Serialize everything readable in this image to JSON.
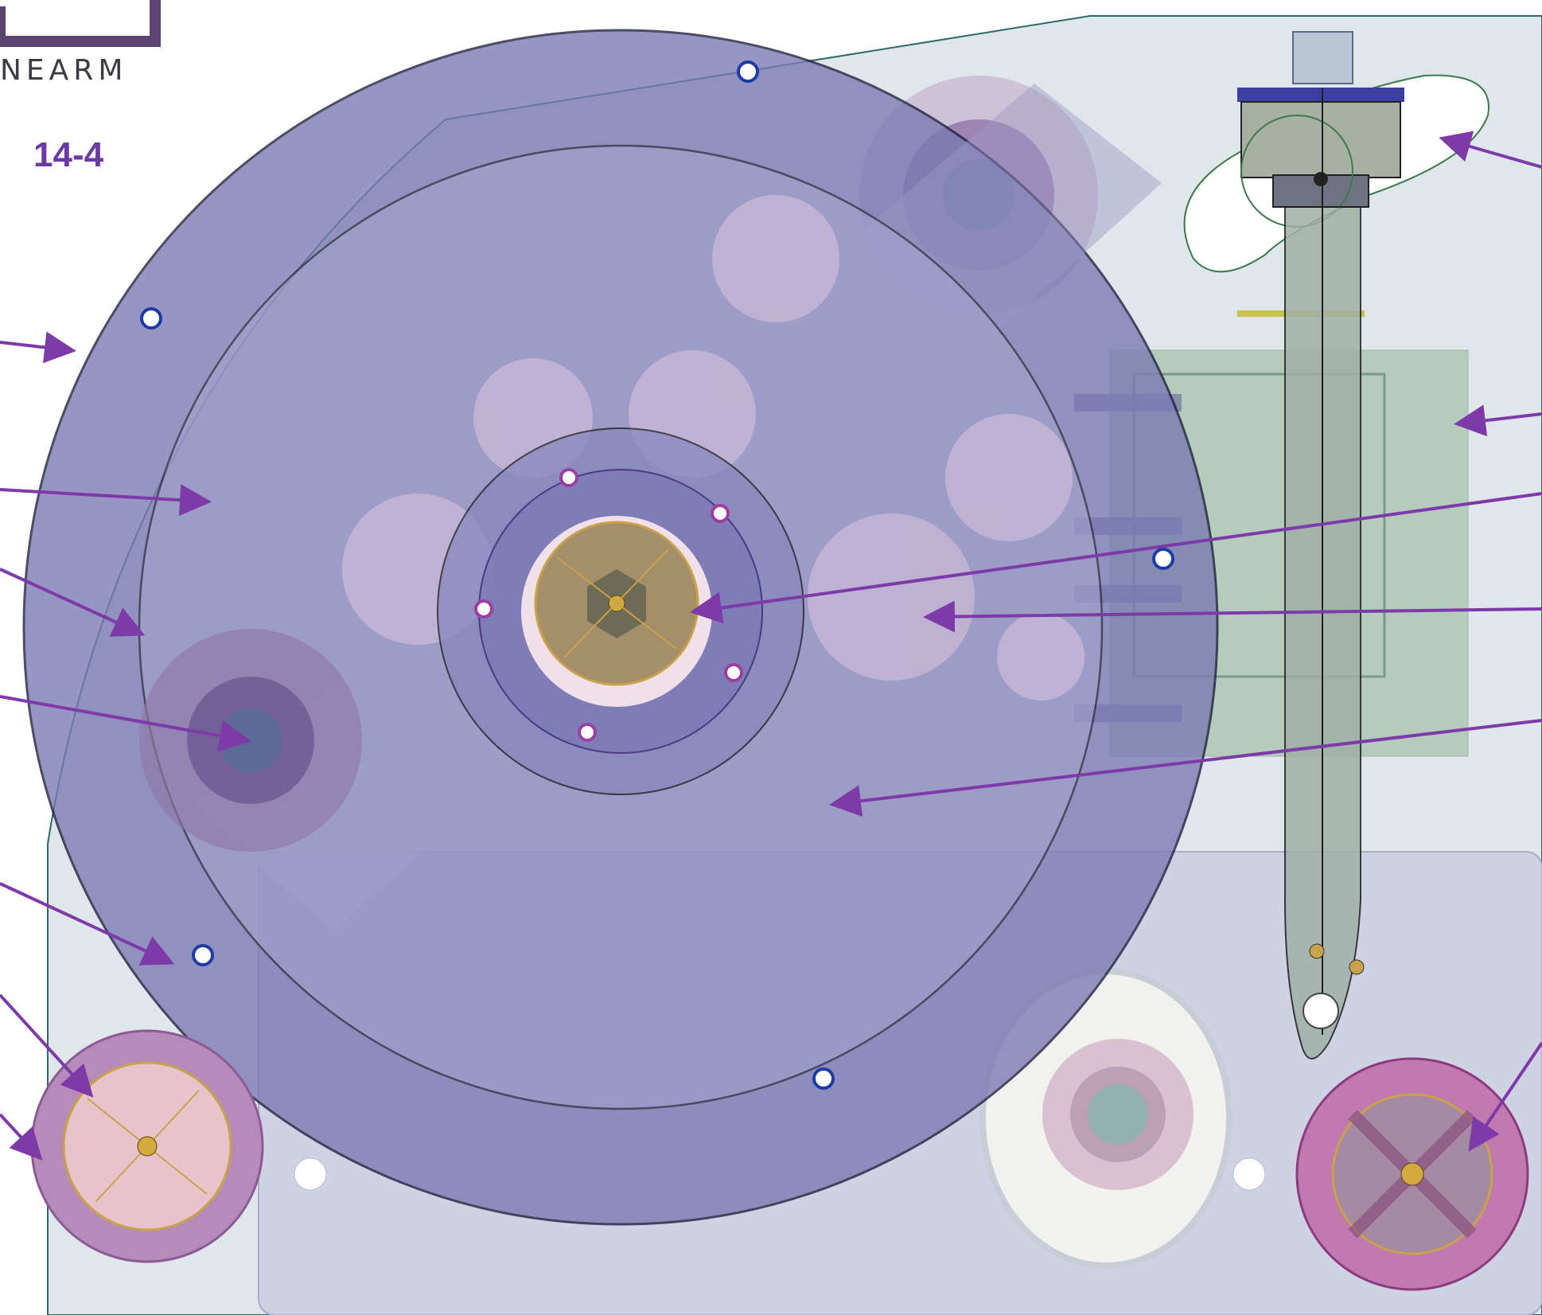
{
  "header": {
    "brand_text": "NEARM",
    "figure_id": "14-4"
  },
  "colors": {
    "platter": "#7a79b3",
    "plinth": "#dfe7ea",
    "callout": "#7d3aa8",
    "brass": "#c9a24a",
    "tonearm": "#8fae98"
  },
  "callouts": [
    {
      "name": "callout-platter-rim"
    },
    {
      "name": "callout-platter-surface"
    },
    {
      "name": "callout-platter-edge-hole"
    },
    {
      "name": "callout-left-motor-pulley"
    },
    {
      "name": "callout-platter-lower-screw"
    },
    {
      "name": "callout-left-foot"
    },
    {
      "name": "callout-left-foot-edge"
    },
    {
      "name": "callout-tonearm-counterweight"
    },
    {
      "name": "callout-armboard"
    },
    {
      "name": "callout-spindle-bearing"
    },
    {
      "name": "callout-subplatter-disc"
    },
    {
      "name": "callout-platter-lower-area"
    },
    {
      "name": "callout-right-foot"
    }
  ]
}
